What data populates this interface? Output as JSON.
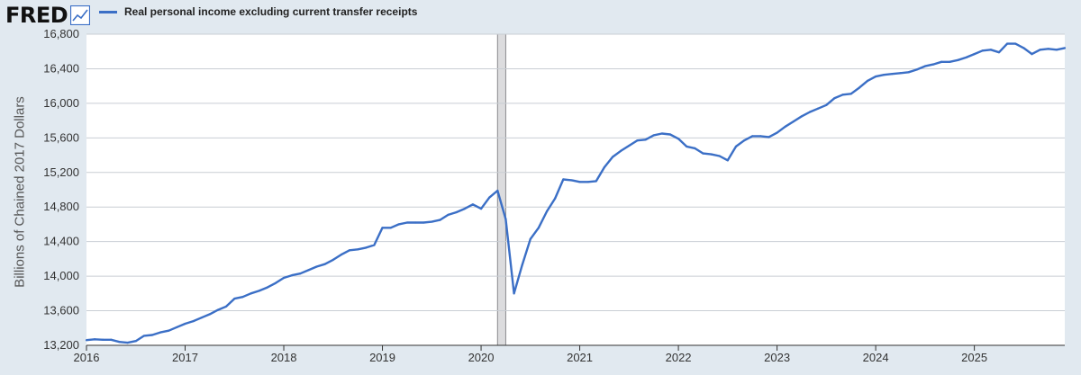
{
  "header": {
    "logo_text": "FRED",
    "logo_icon": "line-chart-icon"
  },
  "colors": {
    "series": "#3b6fc6",
    "background": "#e1e9f0",
    "plot_background": "#ffffff",
    "grid": "#c9ced4",
    "recession": "#dcdcde"
  },
  "chart_data": {
    "type": "line",
    "title": "",
    "xlabel": "",
    "ylabel": "Billions of Chained 2017 Dollars",
    "ylim": [
      13200,
      16800
    ],
    "xlim": [
      "2016-01",
      "2025-12"
    ],
    "y_ticks": [
      "13,200",
      "13,600",
      "14,000",
      "14,400",
      "14,800",
      "15,200",
      "15,600",
      "16,000",
      "16,400",
      "16,800"
    ],
    "x_ticks": [
      "2016",
      "2017",
      "2018",
      "2019",
      "2020",
      "2021",
      "2022",
      "2023",
      "2024",
      "2025"
    ],
    "grid": true,
    "legend": "top-left",
    "recession_shading": [
      {
        "start": "2020-03",
        "end": "2020-04"
      }
    ],
    "series": [
      {
        "name": "Real personal income excluding current transfer receipts",
        "x": [
          "2016-01",
          "2016-02",
          "2016-03",
          "2016-04",
          "2016-05",
          "2016-06",
          "2016-07",
          "2016-08",
          "2016-09",
          "2016-10",
          "2016-11",
          "2016-12",
          "2017-01",
          "2017-02",
          "2017-03",
          "2017-04",
          "2017-05",
          "2017-06",
          "2017-07",
          "2017-08",
          "2017-09",
          "2017-10",
          "2017-11",
          "2017-12",
          "2018-01",
          "2018-02",
          "2018-03",
          "2018-04",
          "2018-05",
          "2018-06",
          "2018-07",
          "2018-08",
          "2018-09",
          "2018-10",
          "2018-11",
          "2018-12",
          "2019-01",
          "2019-02",
          "2019-03",
          "2019-04",
          "2019-05",
          "2019-06",
          "2019-07",
          "2019-08",
          "2019-09",
          "2019-10",
          "2019-11",
          "2019-12",
          "2020-01",
          "2020-02",
          "2020-03",
          "2020-04",
          "2020-05",
          "2020-06",
          "2020-07",
          "2020-08",
          "2020-09",
          "2020-10",
          "2020-11",
          "2020-12",
          "2021-01",
          "2021-02",
          "2021-03",
          "2021-04",
          "2021-05",
          "2021-06",
          "2021-07",
          "2021-08",
          "2021-09",
          "2021-10",
          "2021-11",
          "2021-12",
          "2022-01",
          "2022-02",
          "2022-03",
          "2022-04",
          "2022-05",
          "2022-06",
          "2022-07",
          "2022-08",
          "2022-09",
          "2022-10",
          "2022-11",
          "2022-12",
          "2023-01",
          "2023-02",
          "2023-03",
          "2023-04",
          "2023-05",
          "2023-06",
          "2023-07",
          "2023-08",
          "2023-09",
          "2023-10",
          "2023-11",
          "2023-12",
          "2024-01",
          "2024-02",
          "2024-03",
          "2024-04",
          "2024-05",
          "2024-06",
          "2024-07",
          "2024-08",
          "2024-09",
          "2024-10",
          "2024-11",
          "2024-12",
          "2025-01",
          "2025-02",
          "2025-03",
          "2025-04",
          "2025-05",
          "2025-06",
          "2025-07",
          "2025-08",
          "2025-09",
          "2025-10",
          "2025-11",
          "2025-12"
        ],
        "values": [
          13260,
          13270,
          13265,
          13265,
          13240,
          13230,
          13250,
          13310,
          13320,
          13350,
          13370,
          13410,
          13450,
          13480,
          13520,
          13560,
          13610,
          13650,
          13740,
          13760,
          13800,
          13830,
          13870,
          13920,
          13980,
          14010,
          14030,
          14070,
          14110,
          14140,
          14190,
          14250,
          14300,
          14310,
          14330,
          14360,
          14560,
          14560,
          14600,
          14620,
          14620,
          14620,
          14630,
          14650,
          14710,
          14740,
          14780,
          14830,
          14780,
          14910,
          14990,
          14660,
          13800,
          14130,
          14430,
          14560,
          14750,
          14900,
          15120,
          15110,
          15090,
          15090,
          15100,
          15260,
          15380,
          15450,
          15510,
          15570,
          15580,
          15630,
          15650,
          15640,
          15590,
          15500,
          15480,
          15420,
          15410,
          15390,
          15340,
          15500,
          15570,
          15620,
          15620,
          15610,
          15660,
          15730,
          15790,
          15850,
          15900,
          15940,
          15980,
          16060,
          16100,
          16110,
          16180,
          16260,
          16310,
          16330,
          16340,
          16350,
          16360,
          16390,
          16430,
          16450,
          16480,
          16480,
          16500,
          16530,
          16570,
          16610,
          16620,
          16590,
          16690,
          16690,
          16640,
          16570,
          16620,
          16630,
          16620,
          16640
        ]
      }
    ]
  }
}
